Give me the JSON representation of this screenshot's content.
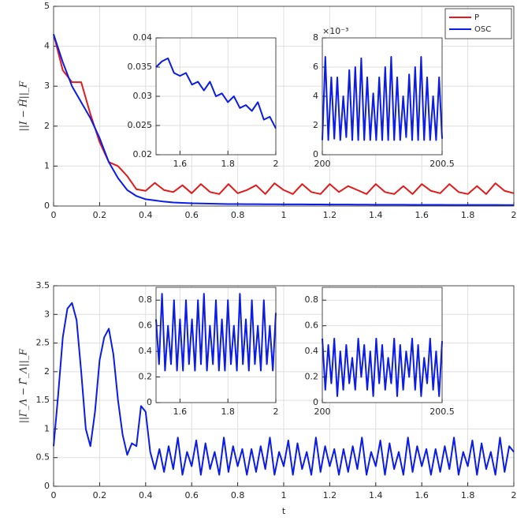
{
  "chart_data": [
    {
      "type": "line",
      "ylabel": "||I − H̃||_F",
      "grid": true,
      "legend": "northeast",
      "xlim": [
        0,
        2
      ],
      "xticks": [
        0,
        0.2,
        0.4,
        0.6,
        0.8,
        1,
        1.2,
        1.4,
        1.6,
        1.8,
        2
      ],
      "ylim": [
        0,
        5
      ],
      "yticks": [
        0,
        1,
        2,
        3,
        4,
        5
      ],
      "x": [
        0,
        0.04,
        0.08,
        0.12,
        0.16,
        0.2,
        0.24,
        0.28,
        0.32,
        0.36,
        0.4,
        0.44,
        0.48,
        0.52,
        0.56,
        0.6,
        0.64,
        0.68,
        0.72,
        0.76,
        0.8,
        0.84,
        0.88,
        0.92,
        0.96,
        1,
        1.04,
        1.08,
        1.12,
        1.16,
        1.2,
        1.24,
        1.28,
        1.32,
        1.36,
        1.4,
        1.44,
        1.48,
        1.52,
        1.56,
        1.6,
        1.64,
        1.68,
        1.72,
        1.76,
        1.8,
        1.84,
        1.88,
        1.92,
        1.96,
        2
      ],
      "series": [
        {
          "name": "P",
          "color": "#e31a1c",
          "values": [
            4.3,
            3.4,
            3.1,
            3.1,
            2.3,
            1.6,
            1.1,
            1.0,
            0.75,
            0.42,
            0.38,
            0.58,
            0.4,
            0.35,
            0.52,
            0.32,
            0.55,
            0.35,
            0.3,
            0.55,
            0.32,
            0.4,
            0.52,
            0.3,
            0.57,
            0.4,
            0.3,
            0.55,
            0.35,
            0.3,
            0.55,
            0.35,
            0.5,
            0.4,
            0.3,
            0.55,
            0.35,
            0.3,
            0.5,
            0.3,
            0.55,
            0.38,
            0.32,
            0.55,
            0.35,
            0.3,
            0.5,
            0.3,
            0.57,
            0.38,
            0.32
          ]
        },
        {
          "name": "OSC",
          "color": "#0a1ce6",
          "values": [
            4.3,
            3.6,
            3.0,
            2.6,
            2.2,
            1.7,
            1.1,
            0.7,
            0.4,
            0.25,
            0.17,
            0.14,
            0.11,
            0.09,
            0.08,
            0.07,
            0.065,
            0.06,
            0.055,
            0.05,
            0.05,
            0.048,
            0.046,
            0.045,
            0.044,
            0.043,
            0.042,
            0.041,
            0.04,
            0.039,
            0.038,
            0.037,
            0.036,
            0.035,
            0.034,
            0.033,
            0.032,
            0.031,
            0.031,
            0.03,
            0.03,
            0.029,
            0.029,
            0.028,
            0.028,
            0.027,
            0.027,
            0.026,
            0.026,
            0.025,
            0.025
          ]
        }
      ]
    },
    {
      "type": "line",
      "grid": true,
      "xlim": [
        1.5,
        2
      ],
      "xticks": [
        1.6,
        1.8,
        2
      ],
      "ylim": [
        0.02,
        0.04
      ],
      "yticks": [
        0.02,
        0.025,
        0.03,
        0.035,
        0.04
      ],
      "x": [
        1.5,
        1.525,
        1.55,
        1.575,
        1.6,
        1.625,
        1.65,
        1.675,
        1.7,
        1.725,
        1.75,
        1.775,
        1.8,
        1.825,
        1.85,
        1.875,
        1.9,
        1.925,
        1.95,
        1.975,
        2
      ],
      "series": [
        {
          "color": "#0a1ce6",
          "values": [
            0.035,
            0.036,
            0.0365,
            0.034,
            0.0335,
            0.034,
            0.032,
            0.0325,
            0.031,
            0.0325,
            0.03,
            0.0305,
            0.029,
            0.03,
            0.028,
            0.0285,
            0.0275,
            0.029,
            0.026,
            0.0265,
            0.0245
          ]
        }
      ]
    },
    {
      "type": "line",
      "grid": true,
      "exponent": "×10⁻³",
      "xlim": [
        200,
        200.5
      ],
      "xticks": [
        200,
        200.5
      ],
      "ylim": [
        0,
        8
      ],
      "yticks": [
        0,
        2,
        4,
        6,
        8
      ],
      "x": [
        200,
        200.0125,
        200.025,
        200.0375,
        200.05,
        200.0625,
        200.075,
        200.0875,
        200.1,
        200.1125,
        200.125,
        200.1375,
        200.15,
        200.1625,
        200.175,
        200.1875,
        200.2,
        200.2125,
        200.225,
        200.2375,
        200.25,
        200.2625,
        200.275,
        200.2875,
        200.3,
        200.3125,
        200.325,
        200.3375,
        200.35,
        200.3625,
        200.375,
        200.3875,
        200.4,
        200.4125,
        200.425,
        200.4375,
        200.45,
        200.4625,
        200.475,
        200.4875,
        200.5
      ],
      "series": [
        {
          "color": "#0a1ce6",
          "values": [
            1.0,
            6.7,
            1.0,
            5.3,
            1.1,
            5.3,
            1.0,
            4.0,
            1.2,
            5.8,
            1.0,
            6.0,
            1.0,
            6.6,
            1.0,
            5.3,
            1.0,
            4.2,
            1.0,
            5.3,
            1.0,
            6.0,
            1.0,
            6.7,
            1.0,
            5.3,
            1.0,
            4.0,
            1.2,
            5.5,
            1.0,
            6.0,
            1.0,
            6.7,
            1.0,
            5.3,
            1.0,
            4.0,
            1.0,
            5.3,
            1.1
          ]
        }
      ]
    },
    {
      "type": "line",
      "ylabel": "||Γ_Λ − Γ̂_Λ||_F",
      "xlabel": "t",
      "grid": true,
      "xlim": [
        0,
        2
      ],
      "xticks": [
        0,
        0.2,
        0.4,
        0.6,
        0.8,
        1,
        1.2,
        1.4,
        1.6,
        1.8,
        2
      ],
      "ylim": [
        0,
        3.5
      ],
      "yticks": [
        0,
        0.5,
        1,
        1.5,
        2,
        2.5,
        3,
        3.5
      ],
      "x": [
        0,
        0.02,
        0.04,
        0.06,
        0.08,
        0.1,
        0.12,
        0.14,
        0.16,
        0.18,
        0.2,
        0.22,
        0.24,
        0.26,
        0.28,
        0.3,
        0.32,
        0.34,
        0.36,
        0.38,
        0.4,
        0.42,
        0.44,
        0.46,
        0.48,
        0.5,
        0.52,
        0.54,
        0.56,
        0.58,
        0.6,
        0.62,
        0.64,
        0.66,
        0.68,
        0.7,
        0.72,
        0.74,
        0.76,
        0.78,
        0.8,
        0.82,
        0.84,
        0.86,
        0.88,
        0.9,
        0.92,
        0.94,
        0.96,
        0.98,
        1,
        1.02,
        1.04,
        1.06,
        1.08,
        1.1,
        1.12,
        1.14,
        1.16,
        1.18,
        1.2,
        1.22,
        1.24,
        1.26,
        1.28,
        1.3,
        1.32,
        1.34,
        1.36,
        1.38,
        1.4,
        1.42,
        1.44,
        1.46,
        1.48,
        1.5,
        1.52,
        1.54,
        1.56,
        1.58,
        1.6,
        1.62,
        1.64,
        1.66,
        1.68,
        1.7,
        1.72,
        1.74,
        1.76,
        1.78,
        1.8,
        1.82,
        1.84,
        1.86,
        1.88,
        1.9,
        1.92,
        1.94,
        1.96,
        1.98,
        2
      ],
      "series": [
        {
          "color": "#0a1ce6",
          "values": [
            0.7,
            1.6,
            2.6,
            3.1,
            3.2,
            2.9,
            2.0,
            1.0,
            0.7,
            1.3,
            2.2,
            2.6,
            2.75,
            2.3,
            1.5,
            0.9,
            0.55,
            0.75,
            0.7,
            1.4,
            1.3,
            0.6,
            0.3,
            0.65,
            0.25,
            0.7,
            0.3,
            0.85,
            0.2,
            0.6,
            0.35,
            0.8,
            0.2,
            0.75,
            0.3,
            0.6,
            0.2,
            0.85,
            0.25,
            0.7,
            0.35,
            0.65,
            0.2,
            0.65,
            0.25,
            0.7,
            0.3,
            0.85,
            0.2,
            0.6,
            0.35,
            0.8,
            0.2,
            0.75,
            0.3,
            0.6,
            0.2,
            0.85,
            0.25,
            0.7,
            0.35,
            0.65,
            0.2,
            0.65,
            0.25,
            0.7,
            0.3,
            0.85,
            0.2,
            0.6,
            0.35,
            0.8,
            0.2,
            0.75,
            0.3,
            0.6,
            0.2,
            0.85,
            0.25,
            0.7,
            0.35,
            0.65,
            0.2,
            0.65,
            0.25,
            0.7,
            0.3,
            0.85,
            0.2,
            0.6,
            0.35,
            0.8,
            0.2,
            0.75,
            0.3,
            0.6,
            0.2,
            0.85,
            0.25,
            0.7,
            0.6
          ]
        }
      ]
    },
    {
      "type": "line",
      "grid": true,
      "xlim": [
        1.5,
        2
      ],
      "xticks": [
        1.6,
        1.8,
        2
      ],
      "ylim": [
        0,
        0.9
      ],
      "yticks": [
        0,
        0.2,
        0.4,
        0.6,
        0.8
      ],
      "x": [
        1.5,
        1.5125,
        1.525,
        1.5375,
        1.55,
        1.5625,
        1.575,
        1.5875,
        1.6,
        1.6125,
        1.625,
        1.6375,
        1.65,
        1.6625,
        1.675,
        1.6875,
        1.7,
        1.7125,
        1.725,
        1.7375,
        1.75,
        1.7625,
        1.775,
        1.7875,
        1.8,
        1.8125,
        1.825,
        1.8375,
        1.85,
        1.8625,
        1.875,
        1.8875,
        1.9,
        1.9125,
        1.925,
        1.9375,
        1.95,
        1.9625,
        1.975,
        1.9875,
        2
      ],
      "series": [
        {
          "color": "#0a1ce6",
          "values": [
            0.65,
            0.3,
            0.85,
            0.25,
            0.6,
            0.3,
            0.8,
            0.25,
            0.65,
            0.25,
            0.8,
            0.3,
            0.65,
            0.25,
            0.8,
            0.3,
            0.85,
            0.25,
            0.6,
            0.3,
            0.8,
            0.25,
            0.65,
            0.25,
            0.8,
            0.3,
            0.6,
            0.25,
            0.85,
            0.3,
            0.65,
            0.25,
            0.8,
            0.3,
            0.6,
            0.25,
            0.8,
            0.3,
            0.6,
            0.25,
            0.7
          ]
        }
      ]
    },
    {
      "type": "line",
      "grid": true,
      "xlim": [
        200,
        200.5
      ],
      "xticks": [
        200,
        200.5
      ],
      "ylim": [
        0,
        0.9
      ],
      "yticks": [
        0,
        0.2,
        0.4,
        0.6,
        0.8
      ],
      "x": [
        200,
        200.0125,
        200.025,
        200.0375,
        200.05,
        200.0625,
        200.075,
        200.0875,
        200.1,
        200.1125,
        200.125,
        200.1375,
        200.15,
        200.1625,
        200.175,
        200.1875,
        200.2,
        200.2125,
        200.225,
        200.2375,
        200.25,
        200.2625,
        200.275,
        200.2875,
        200.3,
        200.3125,
        200.325,
        200.3375,
        200.35,
        200.3625,
        200.375,
        200.3875,
        200.4,
        200.4125,
        200.425,
        200.4375,
        200.45,
        200.4625,
        200.475,
        200.4875,
        200.5
      ],
      "series": [
        {
          "color": "#0a1ce6",
          "values": [
            0.5,
            0.1,
            0.45,
            0.15,
            0.5,
            0.05,
            0.4,
            0.1,
            0.45,
            0.15,
            0.35,
            0.1,
            0.5,
            0.2,
            0.45,
            0.1,
            0.4,
            0.05,
            0.5,
            0.15,
            0.45,
            0.1,
            0.35,
            0.15,
            0.5,
            0.05,
            0.45,
            0.1,
            0.4,
            0.2,
            0.5,
            0.1,
            0.45,
            0.05,
            0.35,
            0.15,
            0.5,
            0.1,
            0.4,
            0.05,
            0.48
          ]
        }
      ]
    }
  ]
}
